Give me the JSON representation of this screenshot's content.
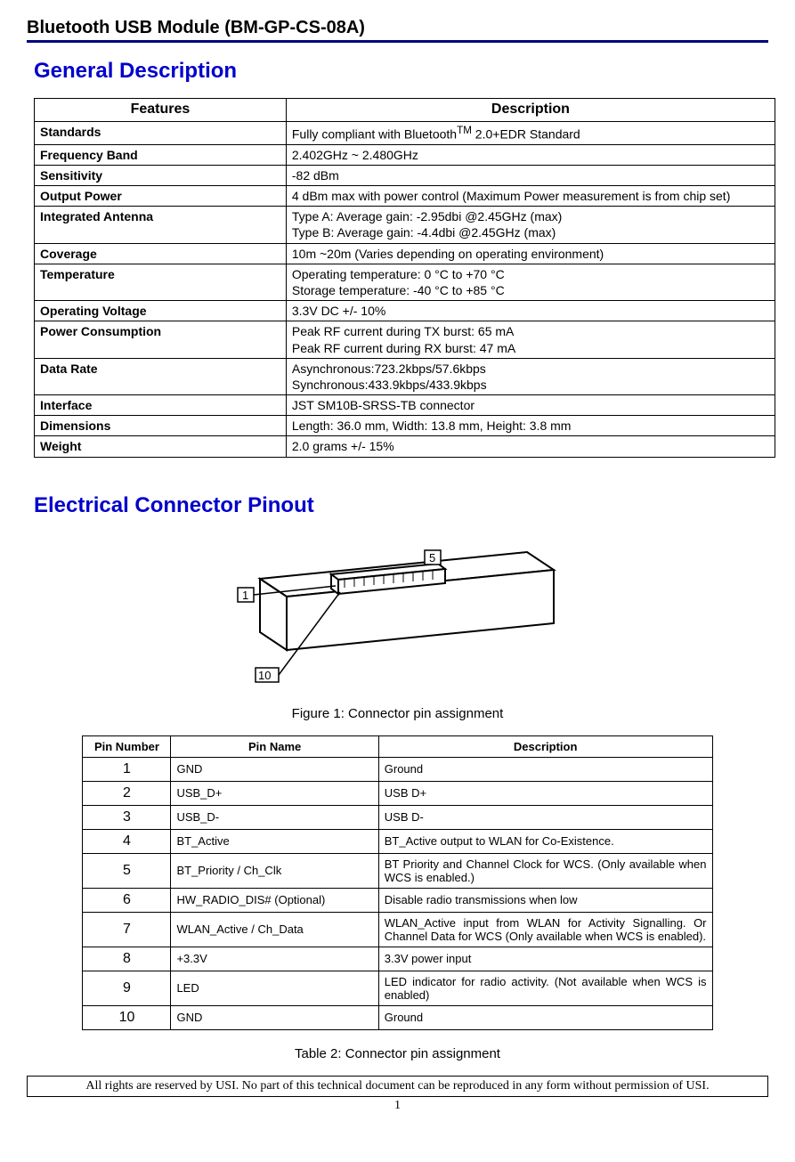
{
  "header": "Bluetooth USB Module (BM-GP-CS-08A)",
  "section1": "General Description",
  "spec_table": {
    "headers": [
      "Features",
      "Description"
    ],
    "rows": [
      {
        "f": "Standards",
        "d": "Fully compliant with Bluetooth<sup>TM</sup> 2.0+EDR Standard"
      },
      {
        "f": "Frequency Band",
        "d": "2.402GHz ~ 2.480GHz"
      },
      {
        "f": "Sensitivity",
        "d": "-82 dBm"
      },
      {
        "f": "Output Power",
        "d": "4 dBm max with power control (Maximum Power measurement is from chip set)"
      },
      {
        "f": "Integrated Antenna",
        "d": "Type A: Average gain: -2.95dbi @2.45GHz (max)<br>Type B: Average gain: -4.4dbi @2.45GHz (max)"
      },
      {
        "f": "Coverage",
        "d": "10m ~20m (Varies depending on operating environment)"
      },
      {
        "f": "Temperature",
        "d": "Operating temperature: 0 °C to +70 °C<br>Storage temperature: -40 °C to +85 °C"
      },
      {
        "f": "Operating Voltage",
        "d": "3.3V DC +/- 10%"
      },
      {
        "f": "Power Consumption",
        "d": "Peak RF current during TX burst: 65 mA<br>Peak RF current during RX burst: 47 mA"
      },
      {
        "f": "Data Rate",
        "d": "Asynchronous:723.2kbps/57.6kbps<br>Synchronous:433.9kbps/433.9kbps"
      },
      {
        "f": "Interface",
        "d": "JST SM10B-SRSS-TB connector"
      },
      {
        "f": "Dimensions",
        "d": "Length: 36.0 mm, Width: 13.8 mm, Height: 3.8 mm"
      },
      {
        "f": "Weight",
        "d": "2.0 grams +/- 15%"
      }
    ]
  },
  "section2": "Electrical Connector Pinout",
  "figure1_caption": "Figure 1: Connector pin assignment",
  "pin_table": {
    "headers": [
      "Pin Number",
      "Pin Name",
      "Description"
    ],
    "rows": [
      {
        "n": "1",
        "name": "GND",
        "desc": "Ground"
      },
      {
        "n": "2",
        "name": "USB_D+",
        "desc": "USB D+"
      },
      {
        "n": "3",
        "name": "USB_D-",
        "desc": "USB D-"
      },
      {
        "n": "4",
        "name": "BT_Active",
        "desc": "BT_Active output to WLAN for Co-Existence."
      },
      {
        "n": "5",
        "name": "BT_Priority / Ch_Clk",
        "desc": "BT Priority and Channel Clock for WCS. (Only available when WCS is enabled.)"
      },
      {
        "n": "6",
        "name": "HW_RADIO_DIS# (Optional)",
        "desc": "Disable radio transmissions when low"
      },
      {
        "n": "7",
        "name": "WLAN_Active / Ch_Data",
        "desc": "WLAN_Active input from WLAN for Activity Signalling. Or Channel Data for WCS (Only available when WCS is enabled)."
      },
      {
        "n": "8",
        "name": "+3.3V",
        "desc": "3.3V power input"
      },
      {
        "n": "9",
        "name": "LED",
        "desc": "LED indicator for radio activity. (Not available when WCS is enabled)"
      },
      {
        "n": "10",
        "name": "GND",
        "desc": "Ground"
      }
    ]
  },
  "table2_caption": "Table 2: Connector pin assignment",
  "footer": "All rights are reserved by USI. No part of this technical document can be reproduced in any form without permission of USI.",
  "page_number": "1",
  "diagram_labels": {
    "pin1": "1",
    "pin5": "5",
    "pin10": "10"
  }
}
